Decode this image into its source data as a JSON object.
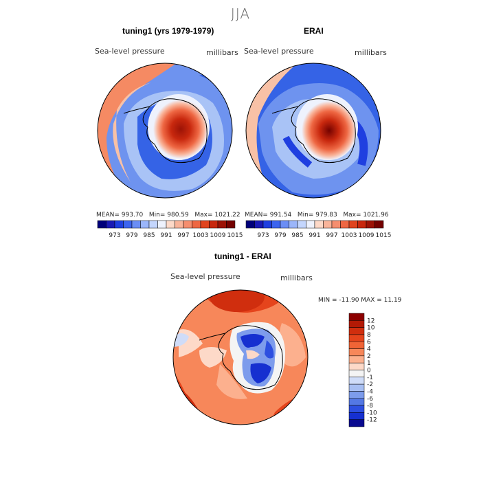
{
  "title": "JJA",
  "panels": [
    {
      "title": "tuning1 (yrs 1979-1979)",
      "variable": "Sea-level pressure",
      "units": "millibars",
      "stats": {
        "mean_label": "MEAN=",
        "mean": "993.70",
        "min_label": "Min=",
        "min": "980.59",
        "max_label": "Max=",
        "max": "1021.22"
      }
    },
    {
      "title": "ERAI",
      "variable": "Sea-level pressure",
      "units": "millibars",
      "stats": {
        "mean_label": "MEAN=",
        "mean": "991.54",
        "min_label": "Min=",
        "min": "979.83",
        "max_label": "Max=",
        "max": "1021.96"
      }
    },
    {
      "title": "tuning1 - ERAI",
      "variable": "Sea-level pressure",
      "units": "millibars",
      "stats": {
        "text": "MIN = -11.90 MAX =  11.19"
      }
    }
  ],
  "field_colorbar": {
    "ticks": [
      "973",
      "979",
      "985",
      "991",
      "997",
      "1003",
      "1009",
      "1015"
    ],
    "colors": [
      "#00007a",
      "#1a1ab4",
      "#1f3fe0",
      "#3c64ef",
      "#6b8ef5",
      "#9bb6fa",
      "#c4d6fd",
      "#eef2fd",
      "#fdd9c8",
      "#f9b49a",
      "#f58e6f",
      "#ee6743",
      "#e0441e",
      "#c8280e",
      "#9c1306",
      "#740200"
    ]
  },
  "diff_colorbar": {
    "ticks": [
      "12",
      "10",
      "8",
      "6",
      "4",
      "2",
      "1",
      "0",
      "-1",
      "-2",
      "-4",
      "-6",
      "-8",
      "-10",
      "-12"
    ],
    "colors": [
      "#8c0000",
      "#b31a05",
      "#d02e0e",
      "#e5441c",
      "#f06436",
      "#f7875a",
      "#fcb08e",
      "#fdd9c8",
      "#f4f4f4",
      "#cfdcf8",
      "#a8bff2",
      "#7d9cec",
      "#5478e4",
      "#2d4fe0",
      "#1630d0",
      "#0a0a90"
    ]
  },
  "ocean_colors": {
    "deep_blue": "#3563e6",
    "mid_blue": "#6e93ef",
    "light_blue": "#a9c3f6",
    "pale": "#dfe8fb",
    "red": "#e1401c",
    "orange": "#f58a63",
    "peach": "#f8c1a6",
    "dark_red": "#a30f05"
  }
}
